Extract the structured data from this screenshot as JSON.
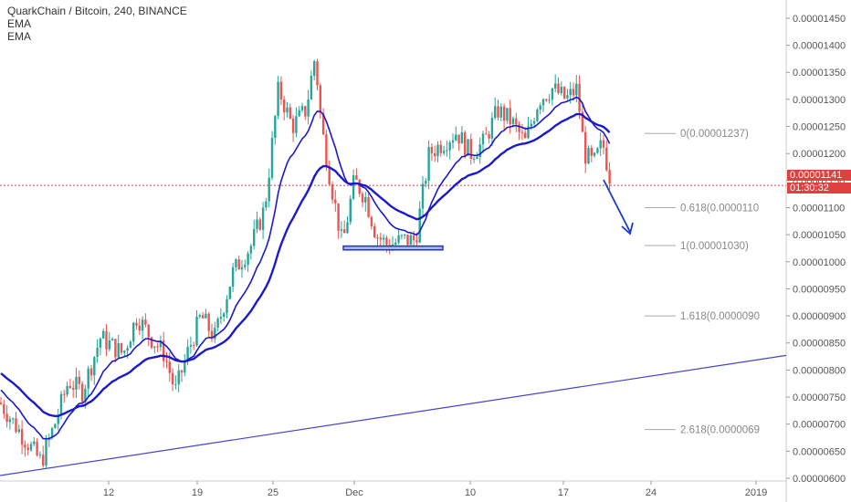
{
  "header": {
    "symbol_line": "QuarkChain / Bitcoin, 240, BINANCE",
    "indicators": [
      "EMA",
      "EMA"
    ]
  },
  "price_badge": {
    "price": "0.00001141",
    "countdown": "01:30:32",
    "color": "#e04040"
  },
  "colors": {
    "up": "#26a69a",
    "down": "#ef5350",
    "ema": "#1a1acc",
    "trendline": "#4444cc",
    "axis_text": "#555555"
  },
  "chart_data": {
    "type": "candlestick",
    "title": "QuarkChain / Bitcoin, 240, BINANCE",
    "ylim": [
      6e-06,
      1.46e-05
    ],
    "yticks": [
      "0.00000600",
      "0.00000650",
      "0.00000700",
      "0.00000750",
      "0.00000800",
      "0.00000850",
      "0.00000900",
      "0.00000950",
      "0.00001000",
      "0.00001050",
      "0.00001100",
      "0.00001150",
      "0.00001200",
      "0.00001250",
      "0.00001300",
      "0.00001350",
      "0.00001400",
      "0.00001450"
    ],
    "xticks": [
      "12",
      "19",
      "25",
      "Dec",
      "10",
      "17",
      "24",
      "2019"
    ],
    "current_price": 1.141e-05,
    "fib_levels": [
      {
        "label": "0(0.00001237)",
        "value": 1.237e-05
      },
      {
        "label": "0.618(0.0000110",
        "value": 1.1e-05
      },
      {
        "label": "1(0.00001030)",
        "value": 1.03e-05
      },
      {
        "label": "1.618(0.0000090",
        "value": 9e-06
      },
      {
        "label": "2.618(0.0000069",
        "value": 6.9e-06
      }
    ],
    "ema_fast_label": "EMA",
    "ema_slow_label": "EMA",
    "support_box": {
      "low": 1.022e-05,
      "high": 1.029e-05
    },
    "trendline": {
      "start": 6.05e-06,
      "end": 8.27e-06
    }
  }
}
